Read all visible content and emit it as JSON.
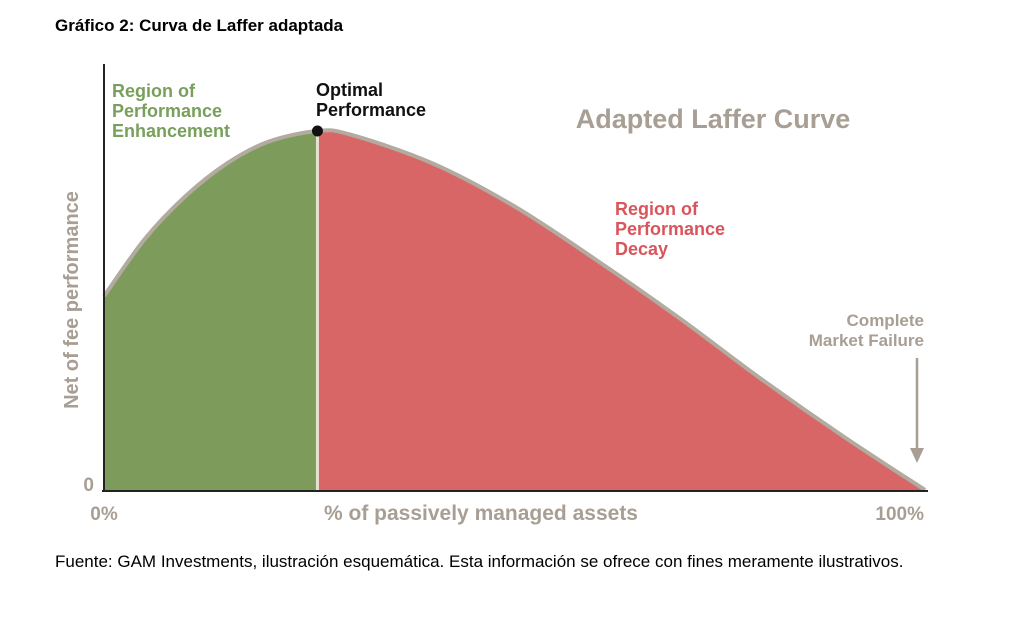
{
  "figure": {
    "caption_title": "Gráfico 2: Curva de Laffer adaptada",
    "source_note": "Fuente: GAM Investments, ilustración esquemática. Esta información se ofrece con fines meramente ilustrativos."
  },
  "chart_data": {
    "type": "area",
    "title": "Adapted Laffer Curve",
    "xlabel": "% of passively managed assets",
    "ylabel": "Net of fee performance",
    "x_ticks": [
      "0%",
      "100%"
    ],
    "y_ticks": [
      "0"
    ],
    "xlim": [
      0,
      100
    ],
    "ylim": [
      0,
      1
    ],
    "grid": false,
    "curve": {
      "x": [
        0,
        5,
        10,
        15,
        20,
        26,
        30,
        40,
        50,
        60,
        70,
        80,
        90,
        100
      ],
      "y": [
        0.54,
        0.7,
        0.82,
        0.91,
        0.97,
        1.0,
        0.99,
        0.91,
        0.79,
        0.64,
        0.48,
        0.31,
        0.15,
        0.0
      ]
    },
    "optimal_x": 26,
    "regions": [
      {
        "label": "Region of Performance Enhancement",
        "lines": [
          "Region of",
          "Performance",
          "Enhancement"
        ],
        "x_from": 0,
        "x_to": 26,
        "color": "#7d9c5c"
      },
      {
        "label": "Region of Performance Decay",
        "lines": [
          "Region of",
          "Performance",
          "Decay"
        ],
        "x_from": 26,
        "x_to": 100,
        "color": "#d96666"
      }
    ],
    "annotations": {
      "optimal": {
        "lines": [
          "Optimal",
          "Performance"
        ]
      },
      "failure": {
        "lines": [
          "Complete",
          "Market Failure"
        ]
      }
    },
    "colors": {
      "curve_outline": "#b3aaa0",
      "axis": "#222222",
      "muted_text": "#a89e94",
      "enhancement_text": "#78a05c",
      "decay_text": "#d9555b",
      "optimal_text": "#111111"
    }
  }
}
